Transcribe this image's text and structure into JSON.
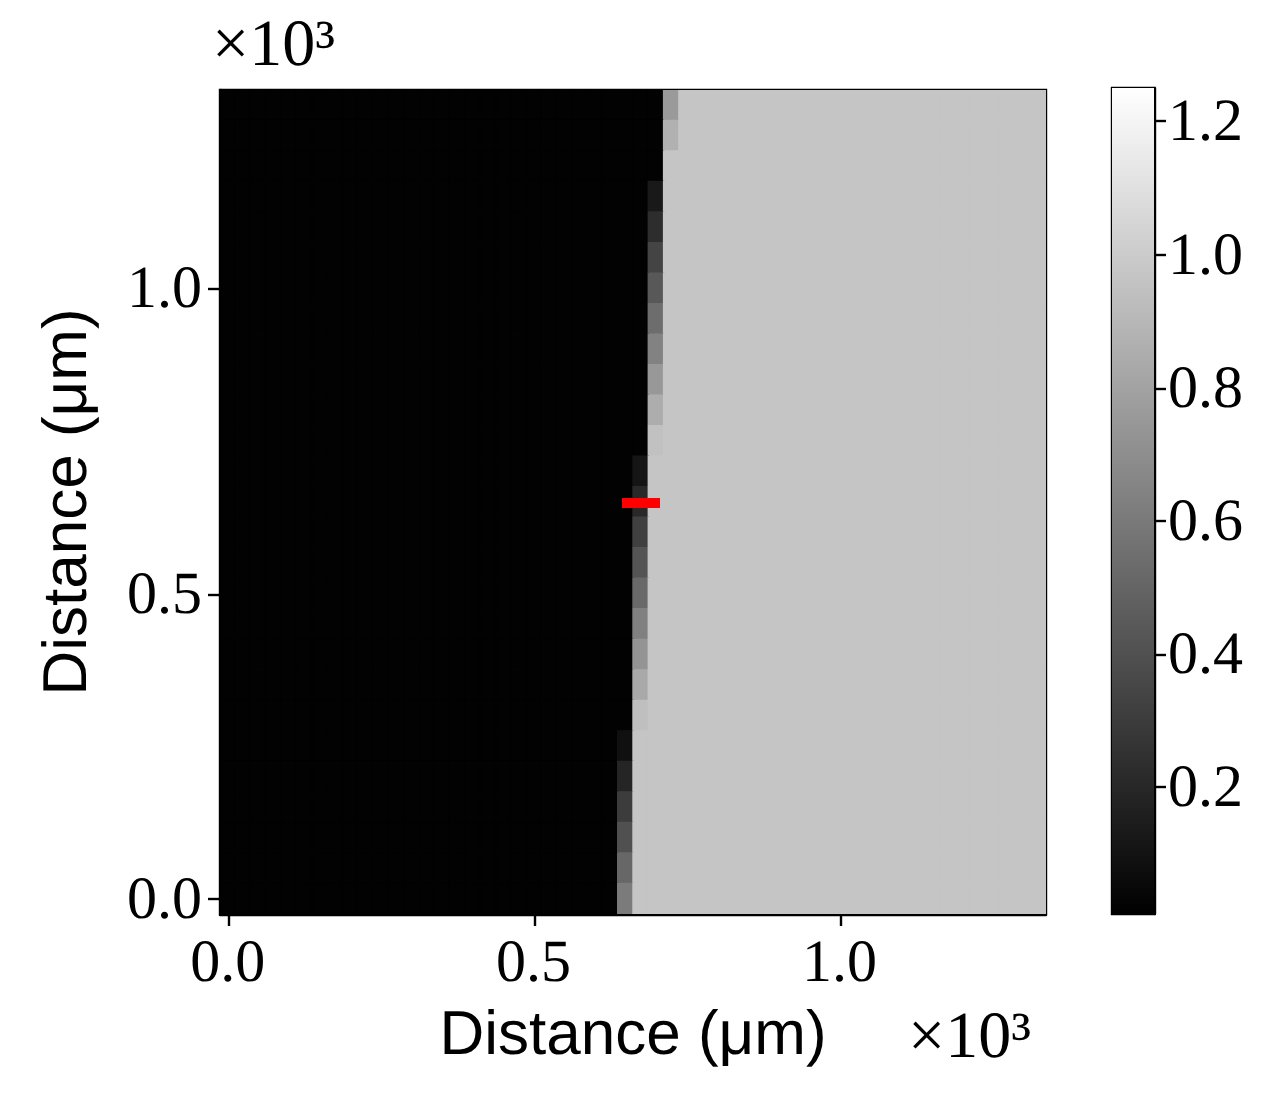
{
  "chart_data": {
    "type": "heatmap",
    "xlabel": "Distance (μm)",
    "ylabel": "Distance (μm)",
    "annotations": [
      "×10³",
      "×10³"
    ],
    "categories": [
      "0.0",
      null,
      null,
      null,
      null,
      null,
      null,
      null,
      null,
      null,
      null,
      null,
      null,
      null,
      null,
      null,
      null,
      null,
      null,
      null,
      "0.5",
      null,
      null,
      null,
      null,
      null,
      null,
      null,
      null,
      null,
      null,
      null,
      null,
      null,
      null,
      null,
      null,
      null,
      null,
      null,
      "1.0",
      null,
      null,
      null,
      null,
      null,
      null,
      null,
      null,
      null,
      null,
      null,
      null,
      null
    ],
    "y_categories": [
      null,
      null,
      null,
      null,
      null,
      null,
      "1.0",
      null,
      null,
      null,
      null,
      null,
      null,
      null,
      null,
      null,
      "0.5",
      null,
      null,
      null,
      null,
      null,
      null,
      null,
      null,
      null,
      "0.0"
    ],
    "clim": [
      0.01,
      1.25
    ],
    "cticks": [
      0.2,
      0.4,
      0.6,
      0.8,
      {
        "value": 1,
        "label": "1.0"
      },
      1.2
    ],
    "cells": [
      [
        0.02,
        0.02,
        0.02,
        0.02,
        0.02,
        0.02,
        0.02,
        0.02,
        0.02,
        0.02,
        0.02,
        0.02,
        0.02,
        0.02,
        0.02,
        0.02,
        0.02,
        0.02,
        0.02,
        0.02,
        0.02,
        0.02,
        0.02,
        0.02,
        0.02,
        0.02,
        0.02,
        0.02,
        0.02,
        0.76,
        0.97,
        0.97,
        0.97,
        0.97,
        0.97,
        0.97,
        0.97,
        0.97,
        0.97,
        0.97,
        0.97,
        0.97,
        0.97,
        0.97,
        0.97,
        0.97,
        0.97,
        0.97,
        0.97,
        0.97,
        0.97,
        0.97,
        0.97,
        0.97
      ],
      [
        0.02,
        0.02,
        0.02,
        0.02,
        0.02,
        0.02,
        0.02,
        0.02,
        0.02,
        0.02,
        0.02,
        0.02,
        0.02,
        0.02,
        0.02,
        0.02,
        0.02,
        0.02,
        0.02,
        0.02,
        0.02,
        0.02,
        0.02,
        0.02,
        0.02,
        0.02,
        0.02,
        0.02,
        0.02,
        0.87,
        0.97,
        0.97,
        0.97,
        0.97,
        0.97,
        0.97,
        0.97,
        0.97,
        0.97,
        0.97,
        0.97,
        0.97,
        0.97,
        0.97,
        0.97,
        0.97,
        0.97,
        0.97,
        0.97,
        0.97,
        0.97,
        0.97,
        0.97,
        0.97
      ],
      [
        0.02,
        0.02,
        0.02,
        0.02,
        0.02,
        0.02,
        0.02,
        0.02,
        0.02,
        0.02,
        0.02,
        0.02,
        0.02,
        0.02,
        0.02,
        0.02,
        0.02,
        0.02,
        0.02,
        0.02,
        0.02,
        0.02,
        0.02,
        0.02,
        0.02,
        0.02,
        0.02,
        0.02,
        0.02,
        0.97,
        0.97,
        0.97,
        0.97,
        0.97,
        0.97,
        0.97,
        0.97,
        0.97,
        0.97,
        0.97,
        0.97,
        0.97,
        0.97,
        0.97,
        0.97,
        0.97,
        0.97,
        0.97,
        0.97,
        0.97,
        0.97,
        0.97,
        0.97,
        0.97
      ],
      [
        0.02,
        0.02,
        0.02,
        0.02,
        0.02,
        0.02,
        0.02,
        0.02,
        0.02,
        0.02,
        0.02,
        0.02,
        0.02,
        0.02,
        0.02,
        0.02,
        0.02,
        0.02,
        0.02,
        0.02,
        0.02,
        0.02,
        0.02,
        0.02,
        0.02,
        0.02,
        0.02,
        0.02,
        0.13,
        0.97,
        0.97,
        0.97,
        0.97,
        0.97,
        0.97,
        0.97,
        0.97,
        0.97,
        0.97,
        0.97,
        0.97,
        0.97,
        0.97,
        0.97,
        0.97,
        0.97,
        0.97,
        0.97,
        0.97,
        0.97,
        0.97,
        0.97,
        0.97,
        0.97
      ],
      [
        0.02,
        0.02,
        0.02,
        0.02,
        0.02,
        0.02,
        0.02,
        0.02,
        0.02,
        0.02,
        0.02,
        0.02,
        0.02,
        0.02,
        0.02,
        0.02,
        0.02,
        0.02,
        0.02,
        0.02,
        0.02,
        0.02,
        0.02,
        0.02,
        0.02,
        0.02,
        0.02,
        0.02,
        0.23,
        0.97,
        0.97,
        0.97,
        0.97,
        0.97,
        0.97,
        0.97,
        0.97,
        0.97,
        0.97,
        0.97,
        0.97,
        0.97,
        0.97,
        0.97,
        0.97,
        0.97,
        0.97,
        0.97,
        0.97,
        0.97,
        0.97,
        0.97,
        0.97,
        0.97
      ],
      [
        0.02,
        0.02,
        0.02,
        0.02,
        0.02,
        0.02,
        0.02,
        0.02,
        0.02,
        0.02,
        0.02,
        0.02,
        0.02,
        0.02,
        0.02,
        0.02,
        0.02,
        0.02,
        0.02,
        0.02,
        0.02,
        0.02,
        0.02,
        0.02,
        0.02,
        0.02,
        0.02,
        0.02,
        0.34,
        0.97,
        0.97,
        0.97,
        0.97,
        0.97,
        0.97,
        0.97,
        0.97,
        0.97,
        0.97,
        0.97,
        0.97,
        0.97,
        0.97,
        0.97,
        0.97,
        0.97,
        0.97,
        0.97,
        0.97,
        0.97,
        0.97,
        0.97,
        0.97,
        0.97
      ],
      [
        0.02,
        0.02,
        0.02,
        0.02,
        0.02,
        0.02,
        0.02,
        0.02,
        0.02,
        0.02,
        0.02,
        0.02,
        0.02,
        0.02,
        0.02,
        0.02,
        0.02,
        0.02,
        0.02,
        0.02,
        0.02,
        0.02,
        0.02,
        0.02,
        0.02,
        0.02,
        0.02,
        0.02,
        0.44,
        0.97,
        0.97,
        0.97,
        0.97,
        0.97,
        0.97,
        0.97,
        0.97,
        0.97,
        0.97,
        0.97,
        0.97,
        0.97,
        0.97,
        0.97,
        0.97,
        0.97,
        0.97,
        0.97,
        0.97,
        0.97,
        0.97,
        0.97,
        0.97,
        0.97
      ],
      [
        0.02,
        0.02,
        0.02,
        0.02,
        0.02,
        0.02,
        0.02,
        0.02,
        0.02,
        0.02,
        0.02,
        0.02,
        0.02,
        0.02,
        0.02,
        0.02,
        0.02,
        0.02,
        0.02,
        0.02,
        0.02,
        0.02,
        0.02,
        0.02,
        0.02,
        0.02,
        0.02,
        0.02,
        0.54,
        0.97,
        0.97,
        0.97,
        0.97,
        0.97,
        0.97,
        0.97,
        0.97,
        0.97,
        0.97,
        0.97,
        0.97,
        0.97,
        0.97,
        0.97,
        0.97,
        0.97,
        0.97,
        0.97,
        0.97,
        0.97,
        0.97,
        0.97,
        0.97,
        0.97
      ],
      [
        0.02,
        0.02,
        0.02,
        0.02,
        0.02,
        0.02,
        0.02,
        0.02,
        0.02,
        0.02,
        0.02,
        0.02,
        0.02,
        0.02,
        0.02,
        0.02,
        0.02,
        0.02,
        0.02,
        0.02,
        0.02,
        0.02,
        0.02,
        0.02,
        0.02,
        0.02,
        0.02,
        0.02,
        0.64,
        0.97,
        0.97,
        0.97,
        0.97,
        0.97,
        0.97,
        0.97,
        0.97,
        0.97,
        0.97,
        0.97,
        0.97,
        0.97,
        0.97,
        0.97,
        0.97,
        0.97,
        0.97,
        0.97,
        0.97,
        0.97,
        0.97,
        0.97,
        0.97,
        0.97
      ],
      [
        0.02,
        0.02,
        0.02,
        0.02,
        0.02,
        0.02,
        0.02,
        0.02,
        0.02,
        0.02,
        0.02,
        0.02,
        0.02,
        0.02,
        0.02,
        0.02,
        0.02,
        0.02,
        0.02,
        0.02,
        0.02,
        0.02,
        0.02,
        0.02,
        0.02,
        0.02,
        0.02,
        0.02,
        0.75,
        0.97,
        0.97,
        0.97,
        0.97,
        0.97,
        0.97,
        0.97,
        0.97,
        0.97,
        0.97,
        0.97,
        0.97,
        0.97,
        0.97,
        0.97,
        0.97,
        0.97,
        0.97,
        0.97,
        0.97,
        0.97,
        0.97,
        0.97,
        0.97,
        0.97
      ],
      [
        0.02,
        0.02,
        0.02,
        0.02,
        0.02,
        0.02,
        0.02,
        0.02,
        0.02,
        0.02,
        0.02,
        0.02,
        0.02,
        0.02,
        0.02,
        0.02,
        0.02,
        0.02,
        0.02,
        0.02,
        0.02,
        0.02,
        0.02,
        0.02,
        0.02,
        0.02,
        0.02,
        0.02,
        0.85,
        0.97,
        0.97,
        0.97,
        0.97,
        0.97,
        0.97,
        0.97,
        0.97,
        0.97,
        0.97,
        0.97,
        0.97,
        0.97,
        0.97,
        0.97,
        0.97,
        0.97,
        0.97,
        0.97,
        0.97,
        0.97,
        0.97,
        0.97,
        0.97,
        0.97
      ],
      [
        0.02,
        0.02,
        0.02,
        0.02,
        0.02,
        0.02,
        0.02,
        0.02,
        0.02,
        0.02,
        0.02,
        0.02,
        0.02,
        0.02,
        0.02,
        0.02,
        0.02,
        0.02,
        0.02,
        0.02,
        0.02,
        0.02,
        0.02,
        0.02,
        0.02,
        0.02,
        0.02,
        0.02,
        0.95,
        0.97,
        0.97,
        0.97,
        0.97,
        0.97,
        0.97,
        0.97,
        0.97,
        0.97,
        0.97,
        0.97,
        0.97,
        0.97,
        0.97,
        0.97,
        0.97,
        0.97,
        0.97,
        0.97,
        0.97,
        0.97,
        0.97,
        0.97,
        0.97,
        0.97
      ],
      [
        0.02,
        0.02,
        0.02,
        0.02,
        0.02,
        0.02,
        0.02,
        0.02,
        0.02,
        0.02,
        0.02,
        0.02,
        0.02,
        0.02,
        0.02,
        0.02,
        0.02,
        0.02,
        0.02,
        0.02,
        0.02,
        0.02,
        0.02,
        0.02,
        0.02,
        0.02,
        0.02,
        0.11,
        0.97,
        0.97,
        0.97,
        0.97,
        0.97,
        0.97,
        0.97,
        0.97,
        0.97,
        0.97,
        0.97,
        0.97,
        0.97,
        0.97,
        0.97,
        0.97,
        0.97,
        0.97,
        0.97,
        0.97,
        0.97,
        0.97,
        0.97,
        0.97,
        0.97,
        0.97
      ],
      [
        0.02,
        0.02,
        0.02,
        0.02,
        0.02,
        0.02,
        0.02,
        0.02,
        0.02,
        0.02,
        0.02,
        0.02,
        0.02,
        0.02,
        0.02,
        0.02,
        0.02,
        0.02,
        0.02,
        0.02,
        0.02,
        0.02,
        0.02,
        0.02,
        0.02,
        0.02,
        0.02,
        0.21,
        0.97,
        0.97,
        0.97,
        0.97,
        0.97,
        0.97,
        0.97,
        0.97,
        0.97,
        0.97,
        0.97,
        0.97,
        0.97,
        0.97,
        0.97,
        0.97,
        0.97,
        0.97,
        0.97,
        0.97,
        0.97,
        0.97,
        0.97,
        0.97,
        0.97,
        0.97
      ],
      [
        0.02,
        0.02,
        0.02,
        0.02,
        0.02,
        0.02,
        0.02,
        0.02,
        0.02,
        0.02,
        0.02,
        0.02,
        0.02,
        0.02,
        0.02,
        0.02,
        0.02,
        0.02,
        0.02,
        0.02,
        0.02,
        0.02,
        0.02,
        0.02,
        0.02,
        0.02,
        0.02,
        0.32,
        0.97,
        0.97,
        0.97,
        0.97,
        0.97,
        0.97,
        0.97,
        0.97,
        0.97,
        0.97,
        0.97,
        0.97,
        0.97,
        0.97,
        0.97,
        0.97,
        0.97,
        0.97,
        0.97,
        0.97,
        0.97,
        0.97,
        0.97,
        0.97,
        0.97,
        0.97
      ],
      [
        0.02,
        0.02,
        0.02,
        0.02,
        0.02,
        0.02,
        0.02,
        0.02,
        0.02,
        0.02,
        0.02,
        0.02,
        0.02,
        0.02,
        0.02,
        0.02,
        0.02,
        0.02,
        0.02,
        0.02,
        0.02,
        0.02,
        0.02,
        0.02,
        0.02,
        0.02,
        0.02,
        0.42,
        0.97,
        0.97,
        0.97,
        0.97,
        0.97,
        0.97,
        0.97,
        0.97,
        0.97,
        0.97,
        0.97,
        0.97,
        0.97,
        0.97,
        0.97,
        0.97,
        0.97,
        0.97,
        0.97,
        0.97,
        0.97,
        0.97,
        0.97,
        0.97,
        0.97,
        0.97
      ],
      [
        0.02,
        0.02,
        0.02,
        0.02,
        0.02,
        0.02,
        0.02,
        0.02,
        0.02,
        0.02,
        0.02,
        0.02,
        0.02,
        0.02,
        0.02,
        0.02,
        0.02,
        0.02,
        0.02,
        0.02,
        0.02,
        0.02,
        0.02,
        0.02,
        0.02,
        0.02,
        0.02,
        0.52,
        0.97,
        0.97,
        0.97,
        0.97,
        0.97,
        0.97,
        0.97,
        0.97,
        0.97,
        0.97,
        0.97,
        0.97,
        0.97,
        0.97,
        0.97,
        0.97,
        0.97,
        0.97,
        0.97,
        0.97,
        0.97,
        0.97,
        0.97,
        0.97,
        0.97,
        0.97
      ],
      [
        0.02,
        0.02,
        0.02,
        0.02,
        0.02,
        0.02,
        0.02,
        0.02,
        0.02,
        0.02,
        0.02,
        0.02,
        0.02,
        0.02,
        0.02,
        0.02,
        0.02,
        0.02,
        0.02,
        0.02,
        0.02,
        0.02,
        0.02,
        0.02,
        0.02,
        0.02,
        0.02,
        0.63,
        0.97,
        0.97,
        0.97,
        0.97,
        0.97,
        0.97,
        0.97,
        0.97,
        0.97,
        0.97,
        0.97,
        0.97,
        0.97,
        0.97,
        0.97,
        0.97,
        0.97,
        0.97,
        0.97,
        0.97,
        0.97,
        0.97,
        0.97,
        0.97,
        0.97,
        0.97
      ],
      [
        0.02,
        0.02,
        0.02,
        0.02,
        0.02,
        0.02,
        0.02,
        0.02,
        0.02,
        0.02,
        0.02,
        0.02,
        0.02,
        0.02,
        0.02,
        0.02,
        0.02,
        0.02,
        0.02,
        0.02,
        0.02,
        0.02,
        0.02,
        0.02,
        0.02,
        0.02,
        0.02,
        0.73,
        0.97,
        0.97,
        0.97,
        0.97,
        0.97,
        0.97,
        0.97,
        0.97,
        0.97,
        0.97,
        0.97,
        0.97,
        0.97,
        0.97,
        0.97,
        0.97,
        0.97,
        0.97,
        0.97,
        0.97,
        0.97,
        0.97,
        0.97,
        0.97,
        0.97,
        0.97
      ],
      [
        0.02,
        0.02,
        0.02,
        0.02,
        0.02,
        0.02,
        0.02,
        0.02,
        0.02,
        0.02,
        0.02,
        0.02,
        0.02,
        0.02,
        0.02,
        0.02,
        0.02,
        0.02,
        0.02,
        0.02,
        0.02,
        0.02,
        0.02,
        0.02,
        0.02,
        0.02,
        0.02,
        0.83,
        0.97,
        0.97,
        0.97,
        0.97,
        0.97,
        0.97,
        0.97,
        0.97,
        0.97,
        0.97,
        0.97,
        0.97,
        0.97,
        0.97,
        0.97,
        0.97,
        0.97,
        0.97,
        0.97,
        0.97,
        0.97,
        0.97,
        0.97,
        0.97,
        0.97,
        0.97
      ],
      [
        0.02,
        0.02,
        0.02,
        0.02,
        0.02,
        0.02,
        0.02,
        0.02,
        0.02,
        0.02,
        0.02,
        0.02,
        0.02,
        0.02,
        0.02,
        0.02,
        0.02,
        0.02,
        0.02,
        0.02,
        0.02,
        0.02,
        0.02,
        0.02,
        0.02,
        0.02,
        0.02,
        0.94,
        0.97,
        0.97,
        0.97,
        0.97,
        0.97,
        0.97,
        0.97,
        0.97,
        0.97,
        0.97,
        0.97,
        0.97,
        0.97,
        0.97,
        0.97,
        0.97,
        0.97,
        0.97,
        0.97,
        0.97,
        0.97,
        0.97,
        0.97,
        0.97,
        0.97,
        0.97
      ],
      [
        0.02,
        0.02,
        0.02,
        0.02,
        0.02,
        0.02,
        0.02,
        0.02,
        0.02,
        0.02,
        0.02,
        0.02,
        0.02,
        0.02,
        0.02,
        0.02,
        0.02,
        0.02,
        0.02,
        0.02,
        0.02,
        0.02,
        0.02,
        0.02,
        0.02,
        0.02,
        0.09,
        0.97,
        0.97,
        0.97,
        0.97,
        0.97,
        0.97,
        0.97,
        0.97,
        0.97,
        0.97,
        0.97,
        0.97,
        0.97,
        0.97,
        0.97,
        0.97,
        0.97,
        0.97,
        0.97,
        0.97,
        0.97,
        0.97,
        0.97,
        0.97,
        0.97,
        0.97,
        0.97
      ],
      [
        0.02,
        0.02,
        0.02,
        0.02,
        0.02,
        0.02,
        0.02,
        0.02,
        0.02,
        0.02,
        0.02,
        0.02,
        0.02,
        0.02,
        0.02,
        0.02,
        0.02,
        0.02,
        0.02,
        0.02,
        0.02,
        0.02,
        0.02,
        0.02,
        0.02,
        0.02,
        0.19,
        0.97,
        0.97,
        0.97,
        0.97,
        0.97,
        0.97,
        0.97,
        0.97,
        0.97,
        0.97,
        0.97,
        0.97,
        0.97,
        0.97,
        0.97,
        0.97,
        0.97,
        0.97,
        0.97,
        0.97,
        0.97,
        0.97,
        0.97,
        0.97,
        0.97,
        0.97,
        0.97
      ],
      [
        0.02,
        0.02,
        0.02,
        0.02,
        0.02,
        0.02,
        0.02,
        0.02,
        0.02,
        0.02,
        0.02,
        0.02,
        0.02,
        0.02,
        0.02,
        0.02,
        0.02,
        0.02,
        0.02,
        0.02,
        0.02,
        0.02,
        0.02,
        0.02,
        0.02,
        0.02,
        0.3,
        0.97,
        0.97,
        0.97,
        0.97,
        0.97,
        0.97,
        0.97,
        0.97,
        0.97,
        0.97,
        0.97,
        0.97,
        0.97,
        0.97,
        0.97,
        0.97,
        0.97,
        0.97,
        0.97,
        0.97,
        0.97,
        0.97,
        0.97,
        0.97,
        0.97,
        0.97,
        0.97
      ],
      [
        0.02,
        0.02,
        0.02,
        0.02,
        0.02,
        0.02,
        0.02,
        0.02,
        0.02,
        0.02,
        0.02,
        0.02,
        0.02,
        0.02,
        0.02,
        0.02,
        0.02,
        0.02,
        0.02,
        0.02,
        0.02,
        0.02,
        0.02,
        0.02,
        0.02,
        0.02,
        0.4,
        0.97,
        0.97,
        0.97,
        0.97,
        0.97,
        0.97,
        0.97,
        0.97,
        0.97,
        0.97,
        0.97,
        0.97,
        0.97,
        0.97,
        0.97,
        0.97,
        0.97,
        0.97,
        0.97,
        0.97,
        0.97,
        0.97,
        0.97,
        0.97,
        0.97,
        0.97,
        0.97
      ],
      [
        0.02,
        0.02,
        0.02,
        0.02,
        0.02,
        0.02,
        0.02,
        0.02,
        0.02,
        0.02,
        0.02,
        0.02,
        0.02,
        0.02,
        0.02,
        0.02,
        0.02,
        0.02,
        0.02,
        0.02,
        0.02,
        0.02,
        0.02,
        0.02,
        0.02,
        0.02,
        0.51,
        0.97,
        0.97,
        0.97,
        0.97,
        0.97,
        0.97,
        0.97,
        0.97,
        0.97,
        0.97,
        0.97,
        0.97,
        0.97,
        0.97,
        0.97,
        0.97,
        0.97,
        0.97,
        0.97,
        0.97,
        0.97,
        0.97,
        0.97,
        0.97,
        0.97,
        0.97,
        0.97
      ],
      [
        0.02,
        0.02,
        0.02,
        0.02,
        0.02,
        0.02,
        0.02,
        0.02,
        0.02,
        0.02,
        0.02,
        0.02,
        0.02,
        0.02,
        0.02,
        0.02,
        0.02,
        0.02,
        0.02,
        0.02,
        0.02,
        0.02,
        0.02,
        0.02,
        0.02,
        0.02,
        0.61,
        0.97,
        0.97,
        0.97,
        0.97,
        0.97,
        0.97,
        0.97,
        0.97,
        0.97,
        0.97,
        0.97,
        0.97,
        0.97,
        0.97,
        0.97,
        0.97,
        0.97,
        0.97,
        0.97,
        0.97,
        0.97,
        0.97,
        0.97,
        0.97,
        0.97,
        0.97,
        0.97
      ]
    ]
  }
}
